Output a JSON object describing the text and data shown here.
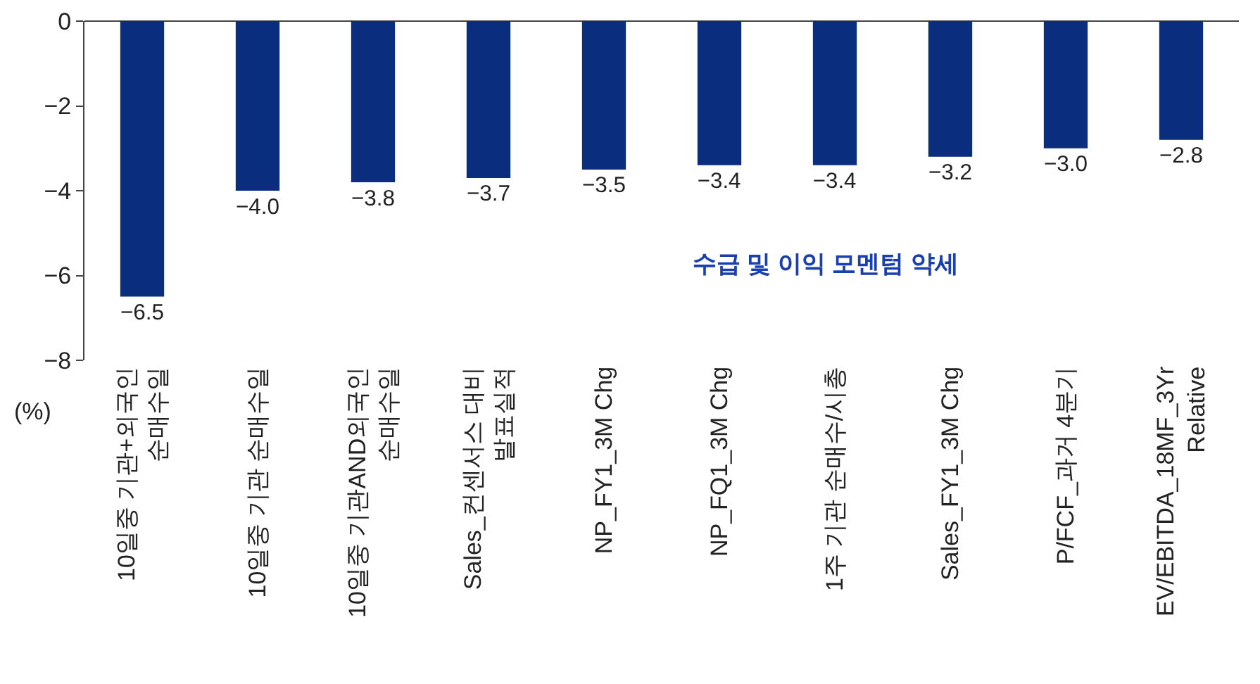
{
  "chart_data": {
    "type": "bar",
    "ylabel": "(%)",
    "categories": [
      "10일중 기관+외국인\n순매수일",
      "10일중 기관 순매수일",
      "10일중 기관AND외국인\n순매수일",
      "Sales_컨센서스 대비\n발표실적",
      "NP_FY1_3M Chg",
      "NP_FQ1_3M Chg",
      "1주 기관 순매수/시총",
      "Sales_FY1_3M Chg",
      "P/FCF_과거 4분기",
      "EV/EBITDA_18MF_3Yr\nRelative"
    ],
    "values": [
      -6.5,
      -4.0,
      -3.8,
      -3.7,
      -3.5,
      -3.4,
      -3.4,
      -3.2,
      -3.0,
      -2.8
    ],
    "value_labels": [
      "−6.5",
      "−4.0",
      "−3.8",
      "−3.7",
      "−3.5",
      "−3.4",
      "−3.4",
      "−3.2",
      "−3.0",
      "−2.8"
    ],
    "color": "#0a2d7e",
    "ylim": [
      -8,
      0
    ],
    "yticks": [
      {
        "value": 0,
        "label": "0"
      },
      {
        "value": -2,
        "label": "−2"
      },
      {
        "value": -4,
        "label": "−4"
      },
      {
        "value": -6,
        "label": "−6"
      },
      {
        "value": -8,
        "label": "−8"
      }
    ],
    "grid": false,
    "legend": false,
    "annotations": [
      "수급 및 이익 모멘텀 약세"
    ]
  }
}
